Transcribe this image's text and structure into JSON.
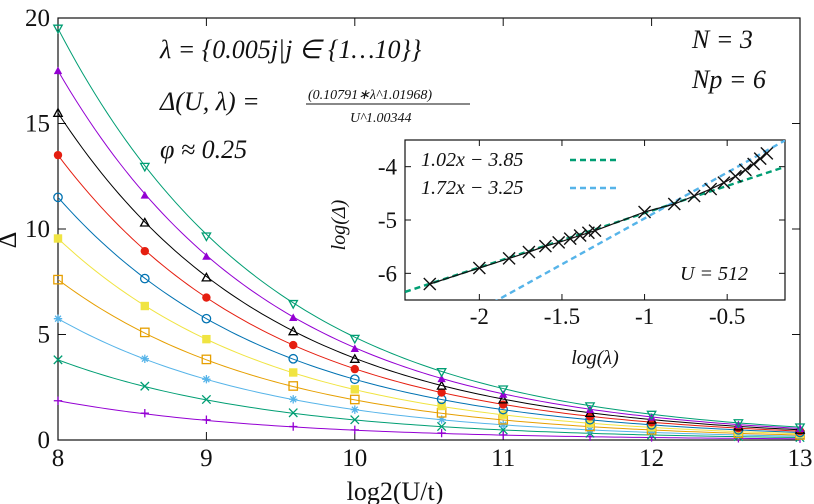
{
  "chart_data": [
    {
      "type": "scatter",
      "xlabel": "log2(U/t)",
      "ylabel": "Δ",
      "xlim": [
        8,
        13
      ],
      "ylim": [
        0,
        20
      ],
      "xticks": [
        "8",
        "9",
        "10",
        "11",
        "12",
        "13"
      ],
      "yticks": [
        "0",
        "5",
        "10",
        "15",
        "20"
      ],
      "grid": false,
      "annotations": {
        "lambda": "λ = {0.005j|j ∈ {1…10}}",
        "fit_lhs": "Δ(U, λ) =",
        "fit_num": "(0.10791∗λ^1.01968)",
        "fit_den": "U^1.00344",
        "phi": "φ ≈ 0.25",
        "N": "N = 3",
        "Np": "Np = 6"
      },
      "x": [
        8,
        8.585,
        9,
        9.585,
        10,
        10.585,
        11,
        11.585,
        12,
        12.585,
        13
      ],
      "series": [
        {
          "values": [
            1.86,
            1.27,
            0.96,
            0.64,
            0.48,
            0.33,
            0.24,
            0.16,
            0.12,
            0.08,
            0.06
          ],
          "color": "#9400d3",
          "marker": "plus"
        },
        {
          "values": [
            3.8,
            2.55,
            1.92,
            1.29,
            0.96,
            0.64,
            0.48,
            0.32,
            0.24,
            0.16,
            0.12
          ],
          "color": "#009e73",
          "marker": "x"
        },
        {
          "values": [
            5.75,
            3.85,
            2.88,
            1.93,
            1.44,
            0.97,
            0.72,
            0.48,
            0.36,
            0.24,
            0.18
          ],
          "color": "#56b4e9",
          "marker": "asterisk"
        },
        {
          "values": [
            7.6,
            5.1,
            3.82,
            2.56,
            1.92,
            1.29,
            0.96,
            0.64,
            0.48,
            0.32,
            0.24
          ],
          "color": "#e69f00",
          "marker": "open-square"
        },
        {
          "values": [
            9.55,
            6.35,
            4.78,
            3.2,
            2.4,
            1.61,
            1.2,
            0.8,
            0.6,
            0.4,
            0.3
          ],
          "color": "#f0e442",
          "marker": "filled-square"
        },
        {
          "values": [
            11.5,
            7.65,
            5.75,
            3.85,
            2.88,
            1.93,
            1.44,
            0.96,
            0.72,
            0.48,
            0.36
          ],
          "color": "#0072b2",
          "marker": "open-circle"
        },
        {
          "values": [
            13.5,
            8.95,
            6.75,
            4.5,
            3.36,
            2.25,
            1.68,
            1.12,
            0.84,
            0.56,
            0.42
          ],
          "color": "#e51e10",
          "marker": "filled-circle"
        },
        {
          "values": [
            15.5,
            10.3,
            7.7,
            5.15,
            3.84,
            2.57,
            1.92,
            1.28,
            0.96,
            0.64,
            0.48
          ],
          "color": "#000000",
          "marker": "open-triangle"
        },
        {
          "values": [
            17.5,
            11.6,
            8.7,
            5.8,
            4.33,
            2.9,
            2.16,
            1.44,
            1.08,
            0.72,
            0.54
          ],
          "color": "#9400d3",
          "marker": "filled-triangle"
        },
        {
          "values": [
            19.5,
            12.95,
            9.65,
            6.45,
            4.8,
            3.22,
            2.4,
            1.6,
            1.2,
            0.8,
            0.6
          ],
          "color": "#009e73",
          "marker": "open-triangle-down"
        }
      ]
    },
    {
      "type": "scatter",
      "xlabel": "log(λ)",
      "ylabel": "log(Δ)",
      "xlim": [
        -2.45,
        -0.15
      ],
      "ylim": [
        -6.5,
        -3.5
      ],
      "xticks": [
        "-2",
        "-1.5",
        "-1",
        "-0.5"
      ],
      "yticks": [
        "-6",
        "-5",
        "-4"
      ],
      "annotation": "U = 512",
      "legend": "top-left",
      "fits": [
        {
          "name": "1.02x − 3.85",
          "slope": 1.02,
          "intercept": -3.85,
          "color": "#009e73",
          "dash": true
        },
        {
          "name": "1.72x − 3.25",
          "slope": 1.72,
          "intercept": -3.25,
          "color": "#56b4e9",
          "dash": true
        }
      ],
      "points_x": [
        -2.3,
        -2.0,
        -1.82,
        -1.7,
        -1.6,
        -1.52,
        -1.45,
        -1.39,
        -1.34,
        -1.3,
        -1.0,
        -0.82,
        -0.7,
        -0.6,
        -0.52,
        -0.45,
        -0.39,
        -0.34,
        -0.3,
        -0.26
      ],
      "points_y": [
        -6.2,
        -5.9,
        -5.72,
        -5.6,
        -5.49,
        -5.42,
        -5.35,
        -5.29,
        -5.24,
        -5.2,
        -4.85,
        -4.7,
        -4.55,
        -4.42,
        -4.3,
        -4.18,
        -4.06,
        -3.95,
        -3.85,
        -3.75
      ]
    }
  ]
}
